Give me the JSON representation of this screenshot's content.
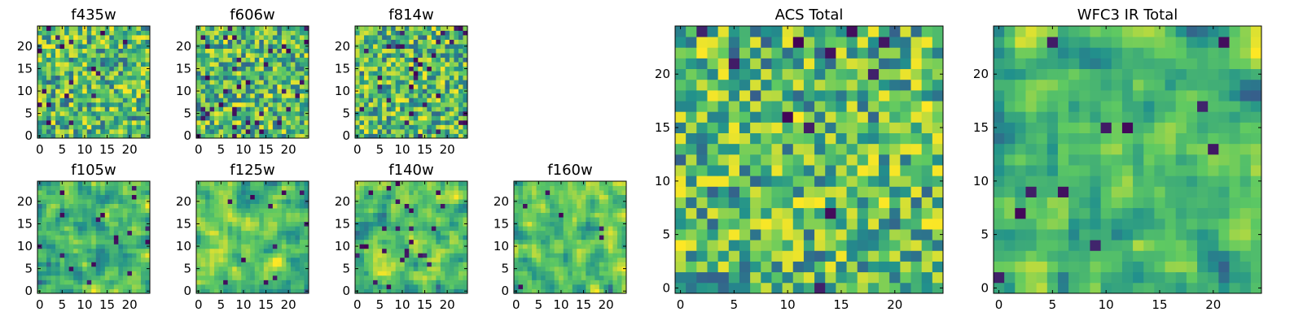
{
  "figure": {
    "colormap_stops": [
      "#440154",
      "#3b528b",
      "#21918c",
      "#5ec962",
      "#fde725"
    ]
  },
  "chart_data": [
    {
      "type": "heatmap",
      "title": "f435w",
      "size": 25,
      "seed": 11,
      "smooth": 0,
      "outlier_rate": 0.04,
      "xticks": [
        0,
        5,
        10,
        15,
        20
      ],
      "yticks": [
        0,
        5,
        10,
        15,
        20
      ],
      "xlim": [
        0,
        24
      ],
      "ylim": [
        0,
        24
      ],
      "grid": false
    },
    {
      "type": "heatmap",
      "title": "f606w",
      "size": 25,
      "seed": 23,
      "smooth": 0,
      "outlier_rate": 0.05,
      "xticks": [
        0,
        5,
        10,
        15,
        20
      ],
      "yticks": [
        0,
        5,
        10,
        15,
        20
      ],
      "xlim": [
        0,
        24
      ],
      "ylim": [
        0,
        24
      ],
      "grid": false
    },
    {
      "type": "heatmap",
      "title": "f814w",
      "size": 25,
      "seed": 37,
      "smooth": 0,
      "outlier_rate": 0.05,
      "xticks": [
        0,
        5,
        10,
        15,
        20
      ],
      "yticks": [
        0,
        5,
        10,
        15,
        20
      ],
      "xlim": [
        0,
        24
      ],
      "ylim": [
        0,
        24
      ],
      "grid": false
    },
    {
      "type": "heatmap",
      "title": "f105w",
      "size": 25,
      "seed": 41,
      "smooth": 1,
      "outlier_rate": 0.02,
      "xticks": [
        0,
        5,
        10,
        15,
        20
      ],
      "yticks": [
        0,
        5,
        10,
        15,
        20
      ],
      "xlim": [
        0,
        24
      ],
      "ylim": [
        0,
        24
      ],
      "grid": false
    },
    {
      "type": "heatmap",
      "title": "f125w",
      "size": 25,
      "seed": 53,
      "smooth": 1,
      "outlier_rate": 0.02,
      "xticks": [
        0,
        5,
        10,
        15,
        20
      ],
      "yticks": [
        0,
        5,
        10,
        15,
        20
      ],
      "xlim": [
        0,
        24
      ],
      "ylim": [
        0,
        24
      ],
      "grid": false
    },
    {
      "type": "heatmap",
      "title": "f140w",
      "size": 25,
      "seed": 67,
      "smooth": 1,
      "outlier_rate": 0.03,
      "xticks": [
        0,
        5,
        10,
        15,
        20
      ],
      "yticks": [
        0,
        5,
        10,
        15,
        20
      ],
      "xlim": [
        0,
        24
      ],
      "ylim": [
        0,
        24
      ],
      "grid": false
    },
    {
      "type": "heatmap",
      "title": "f160w",
      "size": 25,
      "seed": 79,
      "smooth": 1,
      "outlier_rate": 0.02,
      "xticks": [
        0,
        5,
        10,
        15,
        20
      ],
      "yticks": [
        0,
        5,
        10,
        15,
        20
      ],
      "xlim": [
        0,
        24
      ],
      "ylim": [
        0,
        24
      ],
      "grid": false
    },
    {
      "type": "heatmap",
      "title": "ACS Total",
      "size": 25,
      "seed": 97,
      "smooth": 0,
      "outlier_rate": 0.025,
      "xticks": [
        0,
        5,
        10,
        15,
        20
      ],
      "yticks": [
        0,
        5,
        10,
        15,
        20
      ],
      "xlim": [
        0,
        24
      ],
      "ylim": [
        0,
        24
      ],
      "grid": false
    },
    {
      "type": "heatmap",
      "title": "WFC3 IR Total",
      "size": 25,
      "seed": 113,
      "smooth": 1,
      "outlier_rate": 0.02,
      "xticks": [
        0,
        5,
        10,
        15,
        20
      ],
      "yticks": [
        0,
        5,
        10,
        15,
        20
      ],
      "xlim": [
        0,
        24
      ],
      "ylim": [
        0,
        24
      ],
      "grid": false
    }
  ]
}
